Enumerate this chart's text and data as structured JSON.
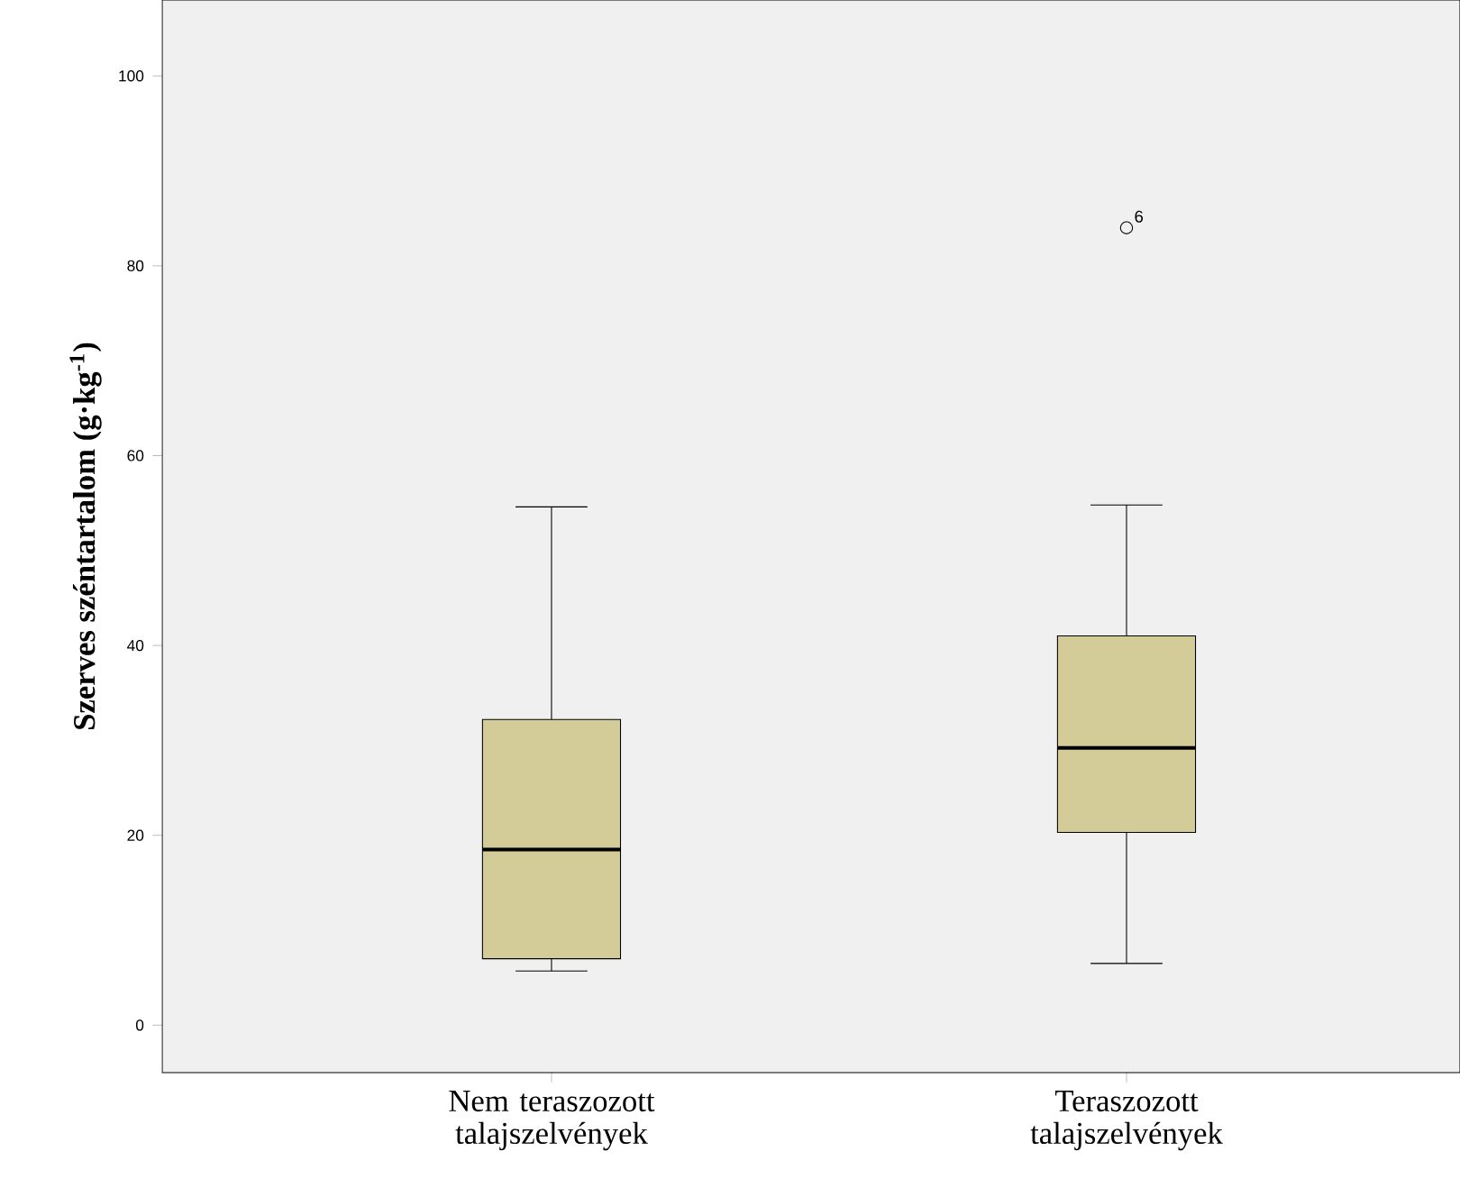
{
  "chart_data": {
    "type": "box",
    "ylabel": "Szerves széntartalom (g·kg$^{-1}$)",
    "categories": [
      "Nem teraszozott talajszelvények",
      "Teraszozott talajszelvények"
    ],
    "boxes": [
      {
        "low": 5.7,
        "q1": 7,
        "median": 18.5,
        "q3": 32.2,
        "high": 54.6
      },
      {
        "low": 6.5,
        "q1": 20.3,
        "median": 29.2,
        "q3": 41,
        "high": 54.8,
        "outliers": [
          84
        ]
      }
    ],
    "color": "#d4cc98",
    "ylim": [
      -5,
      108
    ],
    "yticks": [
      0,
      20,
      40,
      60,
      80,
      100
    ],
    "grid": false,
    "annotations": [
      "6"
    ]
  }
}
